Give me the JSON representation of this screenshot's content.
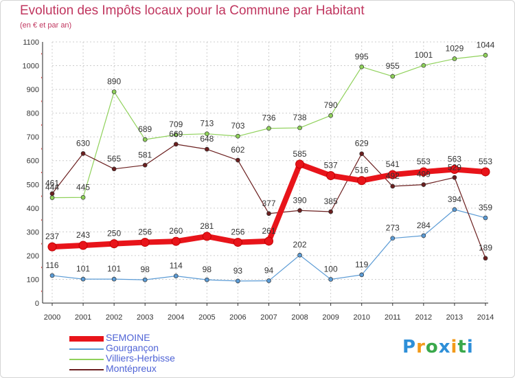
{
  "chart_data": {
    "type": "line",
    "title": "Evolution des Impôts locaux pour la Commune par Habitant",
    "subtitle": "(en € et par an)",
    "xlabel": "",
    "ylabel": "",
    "ylim": [
      0,
      1100
    ],
    "yticks": [
      0,
      100,
      200,
      300,
      400,
      500,
      600,
      700,
      800,
      900,
      1000,
      1100
    ],
    "grid": true,
    "legend_position": "bottom-left",
    "x": [
      2000,
      2001,
      2002,
      2003,
      2004,
      2005,
      2006,
      2007,
      2008,
      2009,
      2010,
      2011,
      2012,
      2013,
      2014
    ],
    "series": [
      {
        "name": "Gourgançon",
        "color": "#5b9bd5",
        "values": [
          116,
          101,
          101,
          98,
          114,
          98,
          93,
          94,
          202,
          100,
          119,
          273,
          284,
          394,
          359
        ]
      },
      {
        "name": "Villiers-Herbisse",
        "color": "#8fd15a",
        "values": [
          444,
          445,
          890,
          689,
          709,
          713,
          703,
          736,
          738,
          790,
          995,
          955,
          1001,
          1029,
          1044
        ]
      },
      {
        "name": "Montépreux",
        "color": "#6b1f1f",
        "values": [
          461,
          630,
          565,
          581,
          669,
          648,
          602,
          377,
          390,
          385,
          629,
          492,
          499,
          529,
          189
        ]
      },
      {
        "name": "SEMOINE",
        "color": "#e8141a",
        "values": [
          237,
          243,
          250,
          256,
          260,
          281,
          256,
          261,
          585,
          537,
          516,
          541,
          553,
          563,
          553
        ]
      }
    ],
    "legend_order": [
      "SEMOINE",
      "Gourgançon",
      "Villiers-Herbisse",
      "Montépreux"
    ]
  },
  "brand": {
    "letters": [
      "P",
      "r",
      "o",
      "x",
      "i",
      "t",
      "i"
    ],
    "colors": [
      "#2e8fd8",
      "#f29a1a",
      "#3aa84b",
      "#2e8fd8",
      "#f29a1a",
      "#3aa84b",
      "#2e8fd8"
    ]
  }
}
